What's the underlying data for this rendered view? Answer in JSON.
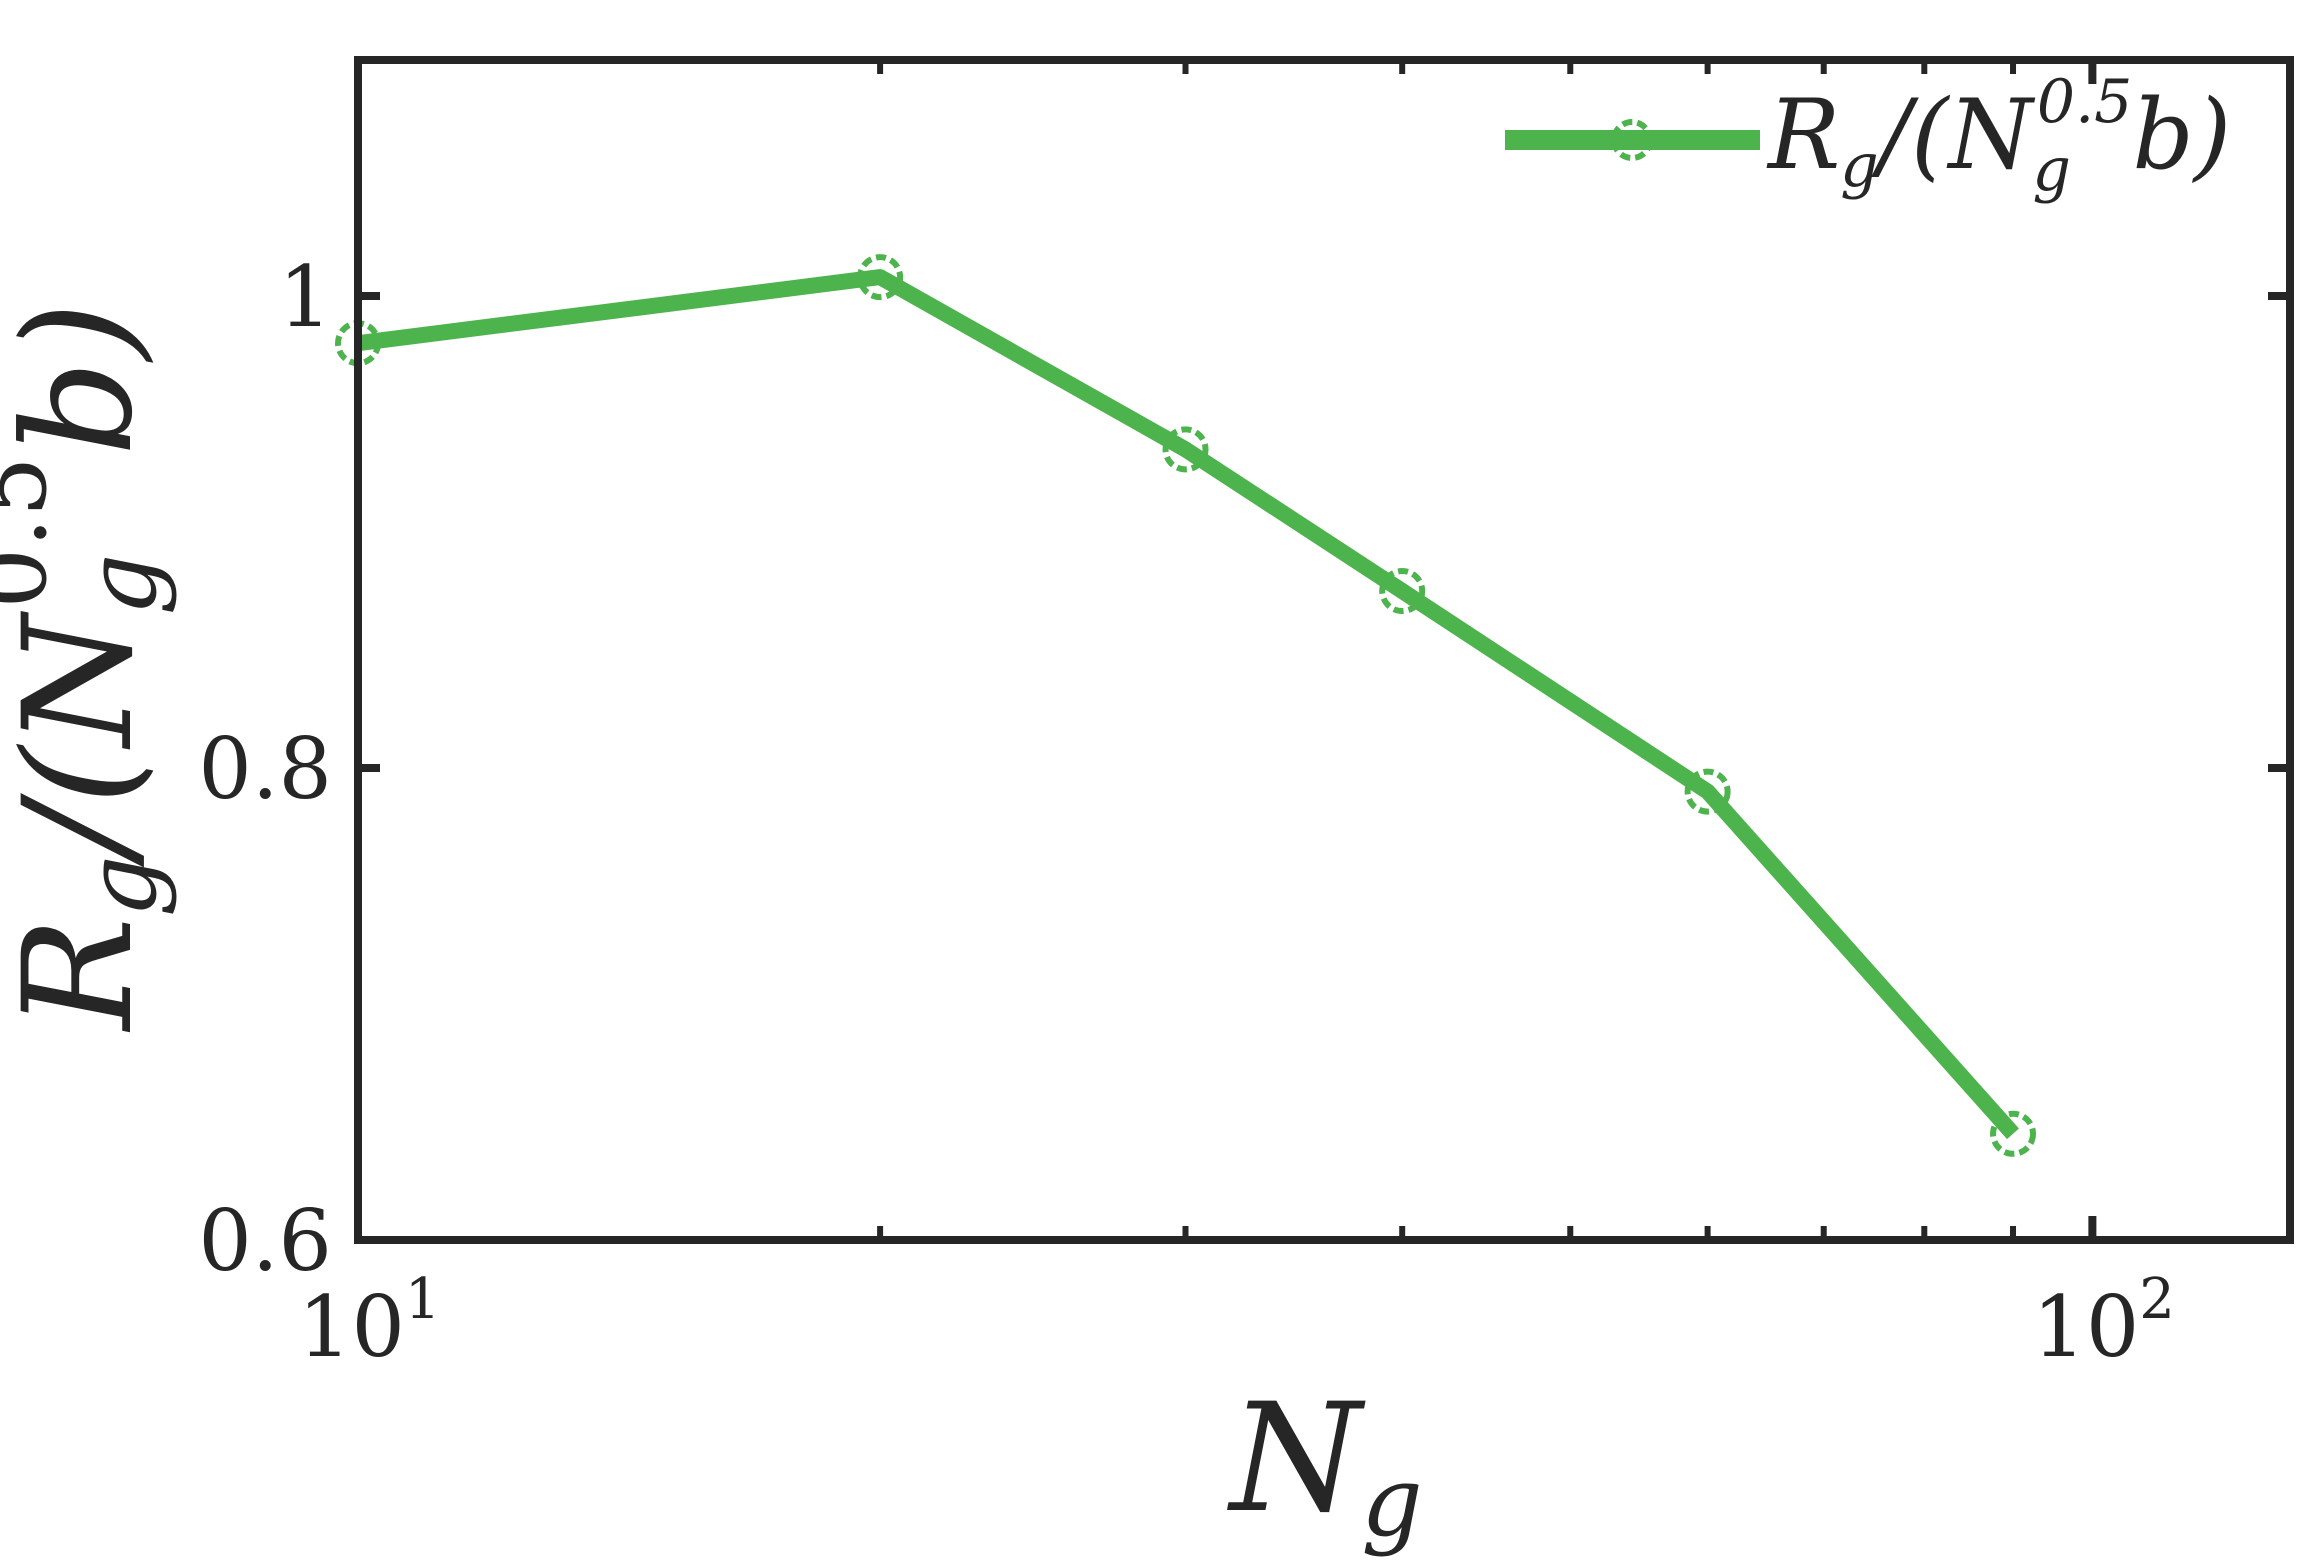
{
  "chart_data": {
    "type": "line",
    "x_scale": "log",
    "x": [
      10,
      20,
      30,
      40,
      60,
      90
    ],
    "series": [
      {
        "name": "R_g/(N_g^0.5 b)",
        "values": [
          0.98,
          1.008,
          0.935,
          0.875,
          0.79,
          0.645
        ],
        "color": "#4db34d",
        "marker": "circle"
      }
    ],
    "xlim": [
      10,
      130
    ],
    "ylim": [
      0.6,
      1.1
    ],
    "x_ticks": [
      {
        "value": 10,
        "base": "10",
        "exp": "1"
      },
      {
        "value": 100,
        "base": "10",
        "exp": "2"
      }
    ],
    "y_ticks": [
      {
        "value": 0.6,
        "label": "0.6"
      },
      {
        "value": 0.8,
        "label": "0.8"
      },
      {
        "value": 1.0,
        "label": "1"
      }
    ],
    "xlabel": {
      "main": "N",
      "sub": "g"
    },
    "ylabel": {
      "main": "R",
      "sub": "g",
      "rest": "/(N",
      "sub2": "g",
      "sup2": "0.5",
      "tail": "b)"
    },
    "legend": {
      "position": "top-right",
      "main": "R",
      "sub": "g",
      "rest": "/(N",
      "sub2": "g",
      "sup2": "0.5",
      "tail": "b)"
    },
    "grid": false,
    "axis_color": "#262626"
  }
}
